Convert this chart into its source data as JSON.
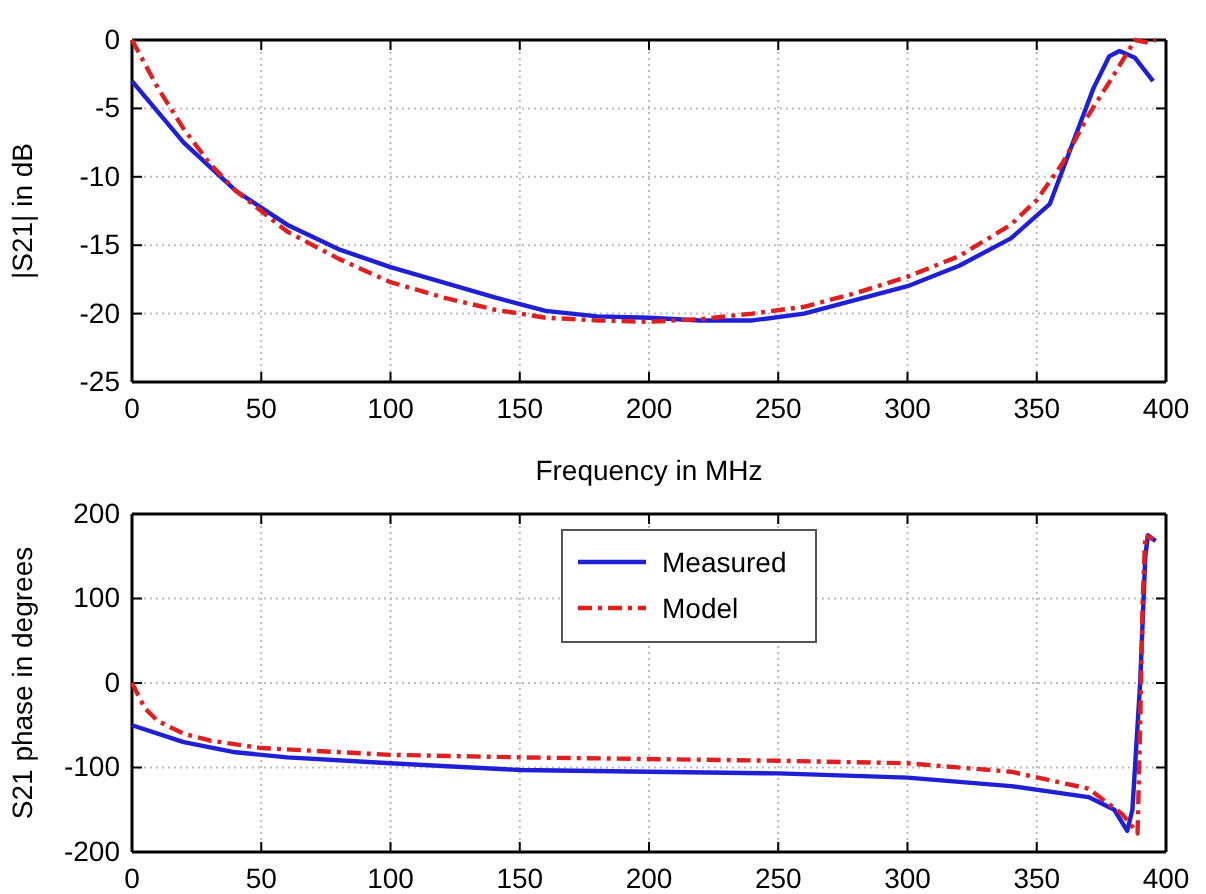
{
  "chart_data": [
    {
      "type": "line",
      "xlabel": "Frequency in MHz",
      "ylabel": "|S21| in dB",
      "xlim": [
        0,
        400
      ],
      "xticks": [
        0,
        50,
        100,
        150,
        200,
        250,
        300,
        350,
        400
      ],
      "ylim": [
        -25,
        0
      ],
      "yticks": [
        -25,
        -20,
        -15,
        -10,
        -5,
        0
      ],
      "grid": true,
      "legend": false,
      "series": [
        {
          "color": "#1f1fd6",
          "line_style": "solid",
          "x": [
            0,
            20,
            40,
            60,
            80,
            100,
            120,
            140,
            160,
            180,
            200,
            220,
            240,
            260,
            280,
            300,
            320,
            340,
            355,
            365,
            372,
            378,
            382,
            388,
            395
          ],
          "values": [
            -3,
            -7.5,
            -11,
            -13.5,
            -15.3,
            -16.6,
            -17.7,
            -18.8,
            -19.8,
            -20.2,
            -20.3,
            -20.5,
            -20.5,
            -20,
            -19,
            -18,
            -16.5,
            -14.5,
            -12,
            -7,
            -3.5,
            -1.2,
            -0.8,
            -1.3,
            -3
          ]
        },
        {
          "color": "#e02020",
          "line_style": "dashed",
          "x": [
            0,
            10,
            20,
            30,
            40,
            60,
            80,
            100,
            120,
            140,
            160,
            180,
            200,
            220,
            240,
            260,
            280,
            300,
            320,
            340,
            350,
            360,
            370,
            380,
            388,
            393,
            396
          ],
          "values": [
            0,
            -3.5,
            -6.5,
            -9,
            -11,
            -14,
            -16,
            -17.7,
            -18.8,
            -19.7,
            -20.3,
            -20.5,
            -20.6,
            -20.4,
            -20,
            -19.5,
            -18.5,
            -17.3,
            -15.8,
            -13.5,
            -11.7,
            -9,
            -5.5,
            -2.5,
            0,
            -0.2,
            0
          ]
        }
      ]
    },
    {
      "type": "line",
      "ylabel": "S21 phase in degrees",
      "xlim": [
        0,
        400
      ],
      "xticks": [
        0,
        50,
        100,
        150,
        200,
        250,
        300,
        350,
        400
      ],
      "ylim": [
        -200,
        200
      ],
      "yticks": [
        -200,
        -100,
        0,
        100,
        200
      ],
      "grid": true,
      "legend": "top",
      "series": [
        {
          "name": "Measured",
          "color": "#1f1fd6",
          "line_style": "solid",
          "x": [
            0,
            20,
            40,
            60,
            100,
            150,
            200,
            250,
            300,
            340,
            370,
            380,
            385,
            387,
            390,
            392,
            393,
            396
          ],
          "values": [
            -50,
            -70,
            -82,
            -88,
            -95,
            -103,
            -105,
            -107,
            -112,
            -122,
            -135,
            -150,
            -175,
            -150,
            0,
            150,
            175,
            168
          ]
        },
        {
          "name": "Model",
          "color": "#e02020",
          "line_style": "dashed",
          "x": [
            0,
            5,
            10,
            20,
            30,
            50,
            100,
            150,
            200,
            250,
            300,
            340,
            370,
            383,
            387,
            389,
            390,
            391,
            392,
            395
          ],
          "values": [
            0,
            -30,
            -45,
            -60,
            -68,
            -77,
            -85,
            -88,
            -90,
            -92,
            -95,
            -105,
            -125,
            -155,
            -170,
            -178,
            -50,
            100,
            175,
            170
          ]
        }
      ]
    }
  ]
}
